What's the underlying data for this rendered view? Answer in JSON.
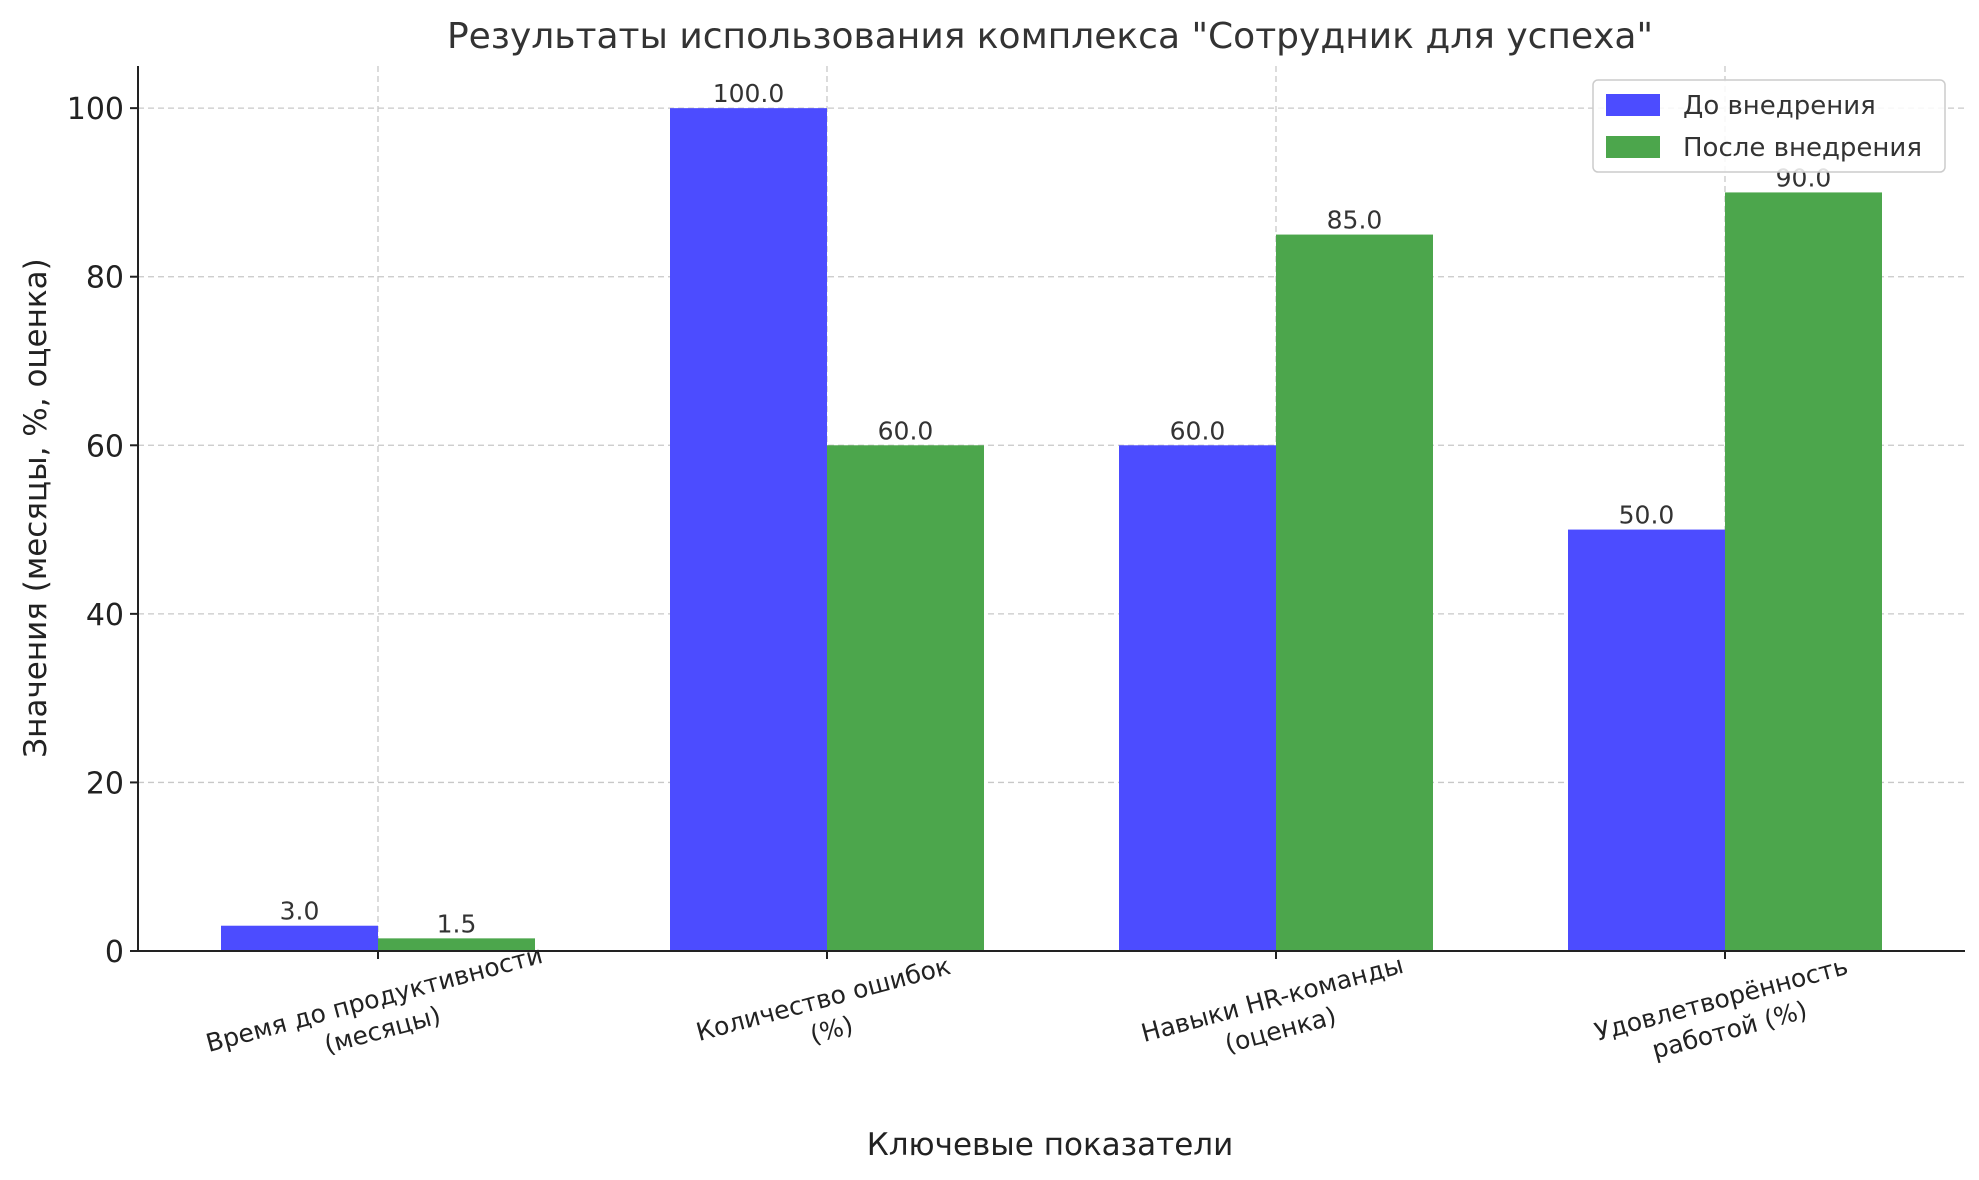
{
  "chart_data": {
    "type": "bar",
    "title": "Результаты использования комплекса \"Сотрудник для успеха\"",
    "xlabel": "Ключевые показатели",
    "ylabel": "Значения (месяцы, %, оценка)",
    "categories": [
      [
        "Время до продуктивности",
        "(месяцы)"
      ],
      [
        "Количество ошибок",
        "(%)"
      ],
      [
        "Навыки HR-команды",
        "(оценка)"
      ],
      [
        "Удовлетворённость",
        "работой (%)"
      ]
    ],
    "series": [
      {
        "name": "До внедрения",
        "color": "#4c4cff",
        "values": [
          3.0,
          100.0,
          60.0,
          50.0
        ],
        "labels": [
          "3.0",
          "100.0",
          "60.0",
          "50.0"
        ]
      },
      {
        "name": "После внедрения",
        "color": "#4ca64c",
        "values": [
          1.5,
          60.0,
          85.0,
          90.0
        ],
        "labels": [
          "1.5",
          "60.0",
          "85.0",
          "90.0"
        ]
      }
    ],
    "yticks": [
      0,
      20,
      40,
      60,
      80,
      100
    ],
    "ylim": [
      0,
      105
    ],
    "grid": true,
    "legend_position": "top-right"
  }
}
